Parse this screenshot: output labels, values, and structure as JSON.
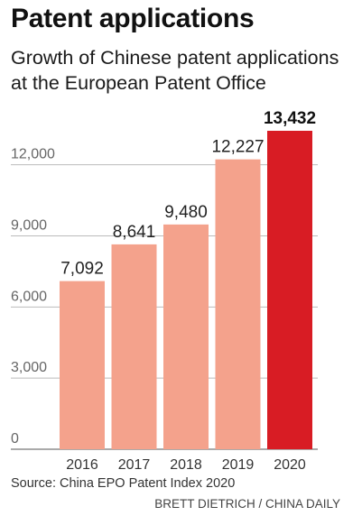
{
  "colors": {
    "bar": "#f4a28c",
    "bar_highlight": "#d81c24",
    "grid": "#bbbbbb",
    "axis": "#555555"
  },
  "chart_data": {
    "type": "bar",
    "title": "Patent applications",
    "subtitle": "Growth of Chinese patent applications at the European Patent Office",
    "categories": [
      "2016",
      "2017",
      "2018",
      "2019",
      "2020"
    ],
    "values": [
      7092,
      8641,
      9480,
      12227,
      13432
    ],
    "value_labels": [
      "7,092",
      "8,641",
      "9,480",
      "12,227",
      "13,432"
    ],
    "highlight_index": 4,
    "yticks": [
      0,
      3000,
      6000,
      9000,
      12000
    ],
    "ytick_labels": [
      "0",
      "3,000",
      "6,000",
      "9,000",
      "12,000"
    ],
    "ylim": [
      0,
      13432
    ],
    "grid": true,
    "xlabel": "",
    "ylabel": ""
  },
  "footer": {
    "source": "Source: China EPO Patent Index 2020",
    "credit": "BRETT DIETRICH  / CHINA DAILY"
  }
}
